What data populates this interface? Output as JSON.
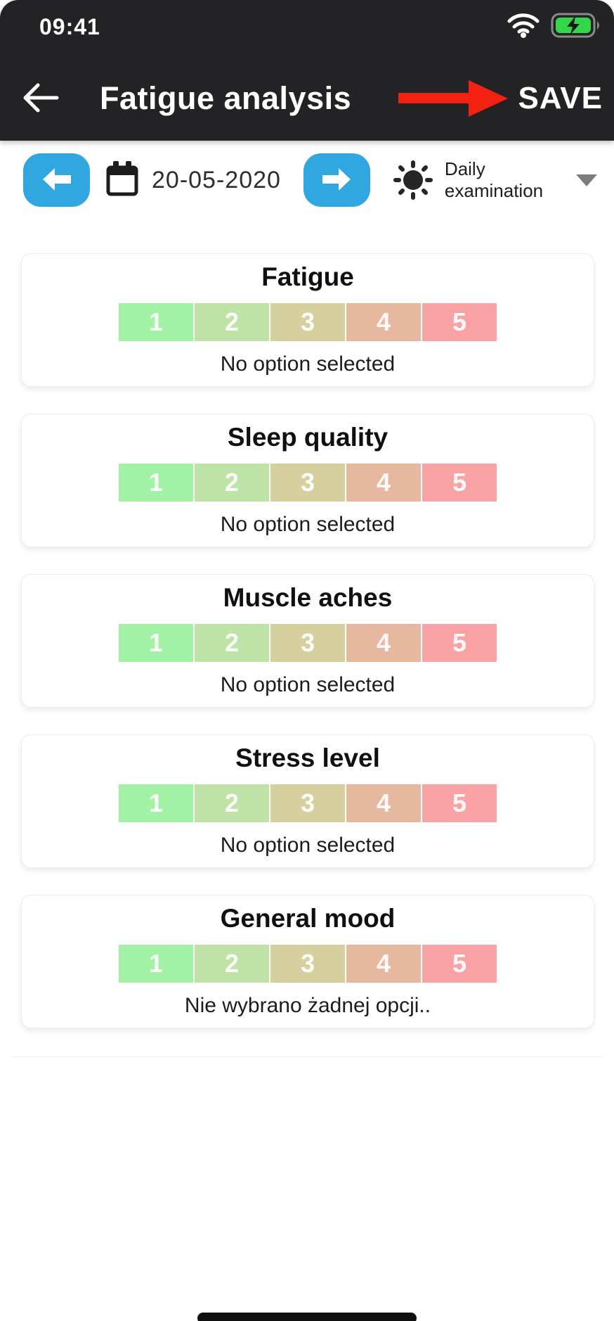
{
  "status_bar": {
    "time": "09:41",
    "icons": [
      "wifi-icon",
      "battery-charging-icon"
    ]
  },
  "header": {
    "back_icon": "back-arrow-icon",
    "title": "Fatigue analysis",
    "annotation_icon": "red-arrow-icon",
    "save_label": "SAVE"
  },
  "toolbar": {
    "prev_icon": "arrow-left-icon",
    "calendar_icon": "calendar-icon",
    "date": "20-05-2020",
    "next_icon": "arrow-right-icon",
    "mode_icon": "sun-icon",
    "mode_label": "Daily examination",
    "dropdown_icon": "chevron-down-icon"
  },
  "scale": {
    "labels": [
      "1",
      "2",
      "3",
      "4",
      "5"
    ],
    "colors": [
      "#a2f2a6",
      "#bfe3a6",
      "#d6cf9e",
      "#e6b89f",
      "#fba2a4"
    ]
  },
  "cards": [
    {
      "title": "Fatigue",
      "status": "No option selected"
    },
    {
      "title": "Sleep quality",
      "status": "No option selected"
    },
    {
      "title": "Muscle aches",
      "status": "No option selected"
    },
    {
      "title": "Stress level",
      "status": "No option selected"
    },
    {
      "title": "General mood",
      "status": "Nie wybrano żadnej opcji.."
    }
  ],
  "colors": {
    "header_bg": "#232326",
    "accent_blue": "#31a7e0",
    "arrow_red": "#f32112",
    "battery_green": "#32d74b"
  }
}
